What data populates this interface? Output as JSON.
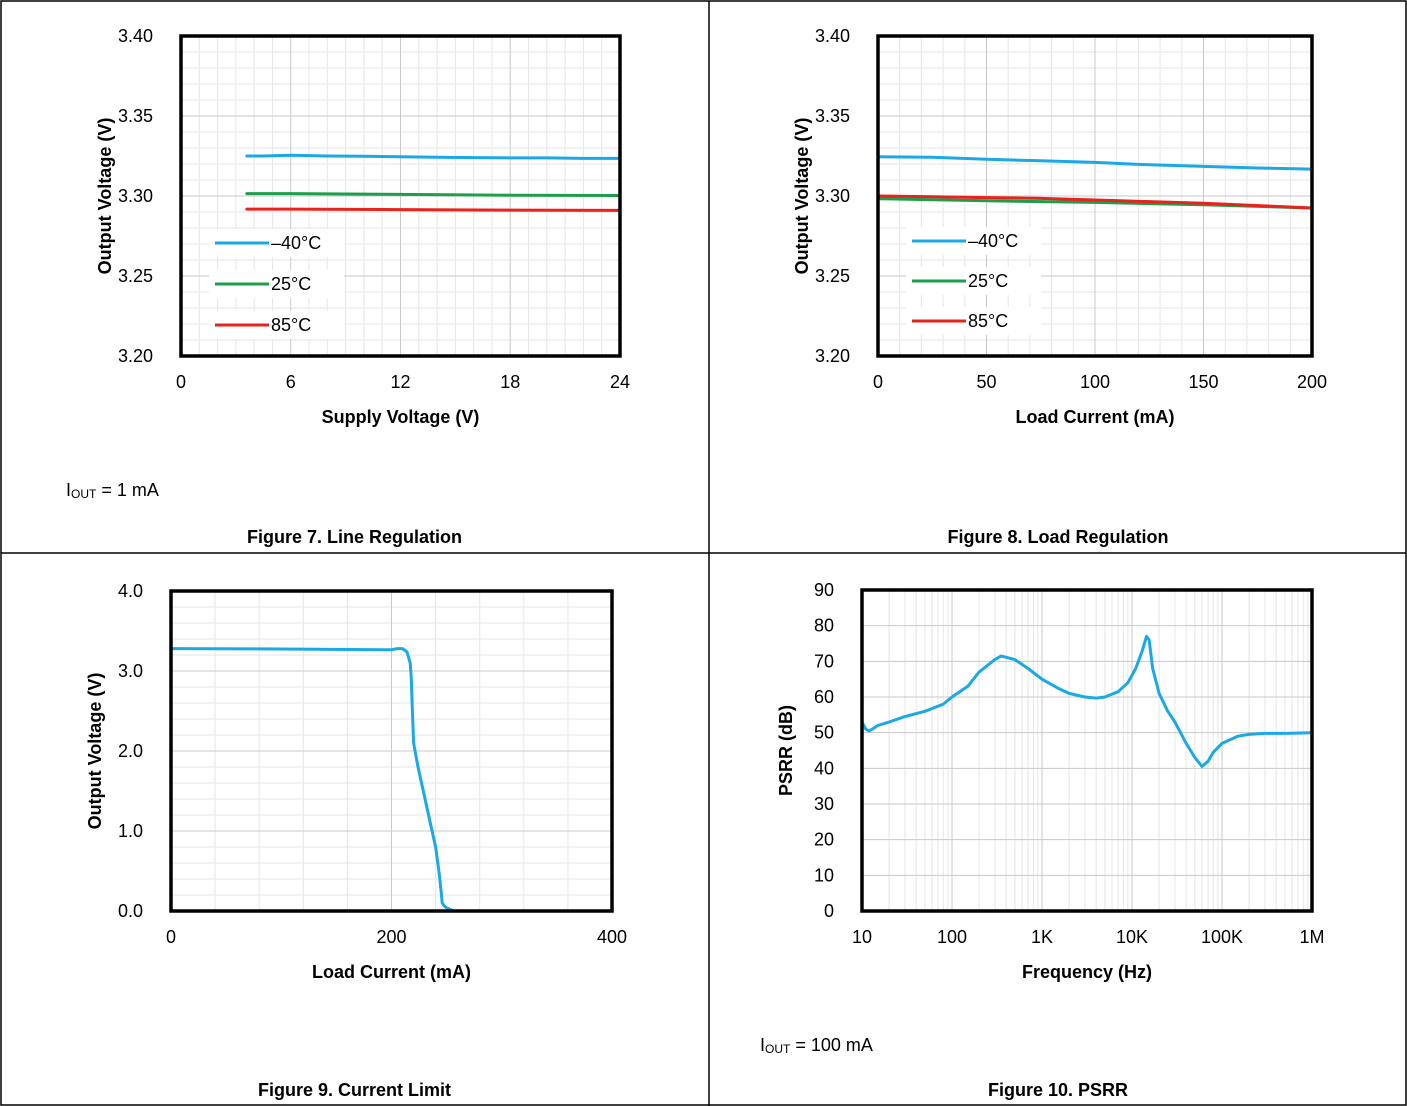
{
  "figures": [
    {
      "caption": "Figure 7. Line Regulation",
      "condition_prefix": "I",
      "condition_sub": "OUT",
      "condition_suffix": " = 1 mA",
      "chart_data": {
        "type": "line",
        "title": "",
        "xlabel": "Supply Voltage (V)",
        "ylabel": "Output Voltage (V)",
        "xlim": [
          0,
          24
        ],
        "ylim": [
          3.2,
          3.4
        ],
        "xticks": [
          0,
          6,
          12,
          18,
          24
        ],
        "xtick_labels": [
          "0",
          "6",
          "12",
          "18",
          "24"
        ],
        "yticks": [
          3.2,
          3.25,
          3.3,
          3.35,
          3.4
        ],
        "ytick_labels": [
          "3.20",
          "3.25",
          "3.30",
          "3.35",
          "3.40"
        ],
        "grid": true,
        "legend_placement": "lower-left",
        "series": [
          {
            "name": "–40°C",
            "color": "#1aa9e6",
            "x": [
              3.6,
              4.5,
              6,
              8,
              10,
              12,
              14,
              16,
              18,
              20,
              22,
              24
            ],
            "y": [
              3.325,
              3.325,
              3.3255,
              3.325,
              3.3248,
              3.3245,
              3.3242,
              3.324,
              3.3238,
              3.3238,
              3.3235,
              3.3235
            ]
          },
          {
            "name": "25°C",
            "color": "#1e9e4a",
            "x": [
              3.6,
              6,
              12,
              18,
              24
            ],
            "y": [
              3.3015,
              3.3015,
              3.301,
              3.3005,
              3.3003
            ]
          },
          {
            "name": "85°C",
            "color": "#e8231d",
            "x": [
              3.6,
              6,
              12,
              18,
              24
            ],
            "y": [
              3.2918,
              3.2918,
              3.2915,
              3.2912,
              3.291
            ]
          }
        ]
      }
    },
    {
      "caption": "Figure 8. Load Regulation",
      "chart_data": {
        "type": "line",
        "title": "",
        "xlabel": "Load Current (mA)",
        "ylabel": "Output Voltage (V)",
        "xlim": [
          0,
          200
        ],
        "ylim": [
          3.2,
          3.4
        ],
        "xticks": [
          0,
          50,
          100,
          150,
          200
        ],
        "xtick_labels": [
          "0",
          "50",
          "100",
          "150",
          "200"
        ],
        "yticks": [
          3.2,
          3.25,
          3.3,
          3.35,
          3.4
        ],
        "ytick_labels": [
          "3.20",
          "3.25",
          "3.30",
          "3.35",
          "3.40"
        ],
        "grid": true,
        "legend_placement": "lower-left",
        "series": [
          {
            "name": "–40°C",
            "color": "#1aa9e6",
            "x": [
              0,
              25,
              50,
              75,
              100,
              125,
              150,
              175,
              200
            ],
            "y": [
              3.3245,
              3.3242,
              3.323,
              3.322,
              3.321,
              3.3195,
              3.3185,
              3.3175,
              3.3168
            ]
          },
          {
            "name": "25°C",
            "color": "#1e9e4a",
            "x": [
              0,
              50,
              100,
              150,
              200
            ],
            "y": [
              3.2983,
              3.297,
              3.296,
              3.2945,
              3.2925
            ]
          },
          {
            "name": "85°C",
            "color": "#e8231d",
            "x": [
              0,
              25,
              50,
              75,
              100,
              125,
              150,
              175,
              200
            ],
            "y": [
              3.3,
              3.2995,
              3.299,
              3.2985,
              3.2975,
              3.2965,
              3.2955,
              3.294,
              3.2925
            ]
          }
        ]
      }
    },
    {
      "caption": "Figure 9. Current Limit",
      "chart_data": {
        "type": "line",
        "title": "",
        "xlabel": "Load Current (mA)",
        "ylabel": "Output Voltage (V)",
        "xlim": [
          0,
          400
        ],
        "ylim": [
          0,
          4
        ],
        "xticks": [
          0,
          200,
          400
        ],
        "xtick_labels": [
          "0",
          "200",
          "400"
        ],
        "yticks": [
          0,
          1,
          2,
          3,
          4
        ],
        "ytick_labels": [
          "0.0",
          "1.0",
          "2.0",
          "3.0",
          "4.0"
        ],
        "grid": true,
        "series": [
          {
            "name": "",
            "color": "#1aa9e6",
            "x": [
              0,
              100,
              200,
              205,
              210,
              214,
              217,
              218,
              219,
              220,
              224,
              228,
              232,
              236,
              240,
              243,
              245,
              246,
              248,
              250,
              253,
              256
            ],
            "y": [
              3.28,
              3.275,
              3.265,
              3.28,
              3.28,
              3.24,
              3.1,
              2.9,
              2.5,
              2.1,
              1.8,
              1.55,
              1.3,
              1.05,
              0.8,
              0.5,
              0.25,
              0.1,
              0.06,
              0.04,
              0.02,
              0.0
            ]
          }
        ]
      }
    },
    {
      "caption": "Figure 10. PSRR",
      "condition_prefix": "I",
      "condition_sub": "OUT",
      "condition_suffix": " = 100 mA",
      "chart_data": {
        "type": "line",
        "title": "",
        "xlabel": "Frequency (Hz)",
        "ylabel": "PSRR (dB)",
        "xscale": "log",
        "xlim": [
          10,
          1000000
        ],
        "ylim": [
          0,
          90
        ],
        "xticks": [
          10,
          100,
          1000,
          10000,
          100000,
          1000000
        ],
        "xtick_labels": [
          "10",
          "100",
          "1K",
          "10K",
          "100K",
          "1M"
        ],
        "yticks": [
          0,
          10,
          20,
          30,
          40,
          50,
          60,
          70,
          80,
          90
        ],
        "ytick_labels": [
          "0",
          "10",
          "20",
          "30",
          "40",
          "50",
          "60",
          "70",
          "80",
          "90"
        ],
        "grid": true,
        "series": [
          {
            "name": "",
            "color": "#1aa9e6",
            "x": [
              10,
              11,
              12,
              13,
              15,
              20,
              30,
              50,
              80,
              100,
              150,
              200,
              300,
              350,
              500,
              700,
              1000,
              1500,
              2000,
              3000,
              4000,
              5000,
              7000,
              9000,
              11000,
              13000,
              14500,
              15500,
              17000,
              20000,
              25000,
              30000,
              40000,
              50000,
              60000,
              70000,
              80000,
              100000,
              150000,
              200000,
              300000,
              500000,
              1000000
            ],
            "y": [
              53,
              51,
              50.5,
              51,
              52,
              53,
              54.5,
              56,
              58,
              60,
              63,
              67,
              70.5,
              71.5,
              70.5,
              68,
              65,
              62.5,
              61,
              60,
              59.7,
              60,
              61.5,
              64,
              68,
              73,
              77,
              76,
              68,
              61,
              56,
              53,
              47,
              43,
              40.5,
              42,
              44.5,
              47,
              49,
              49.5,
              49.8,
              49.8,
              50
            ]
          }
        ]
      }
    }
  ]
}
